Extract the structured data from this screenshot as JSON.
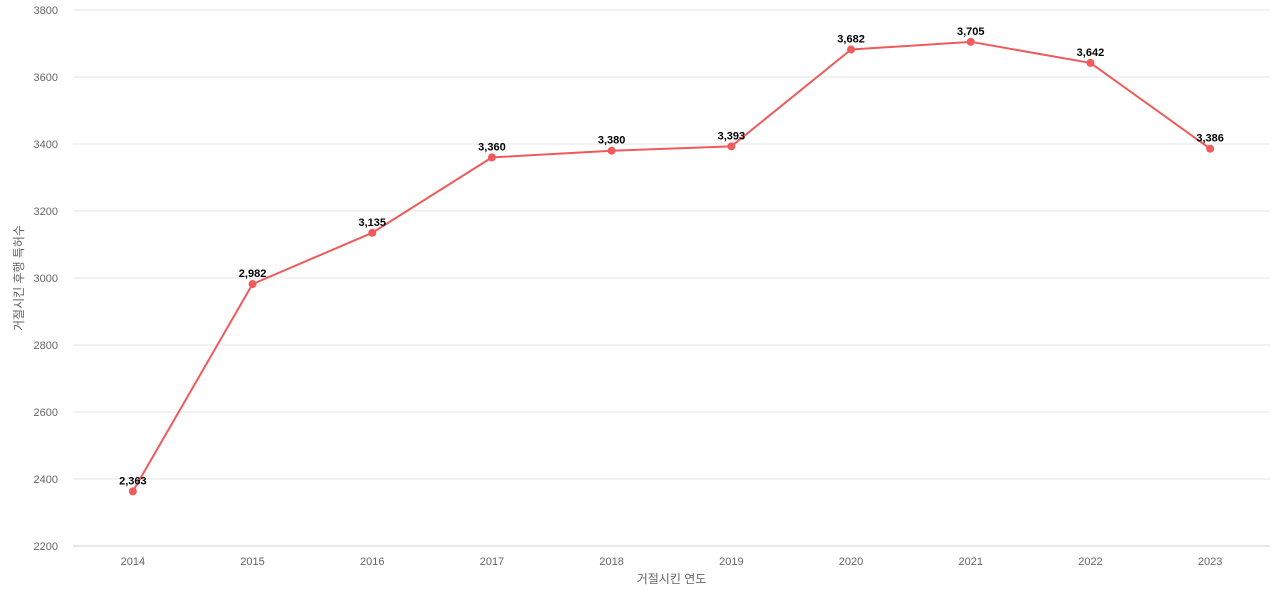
{
  "chart_data": {
    "type": "line",
    "title": "",
    "xlabel": "거절시킨 연도",
    "ylabel": "거절시킨 후행 특허수",
    "categories": [
      "2014",
      "2015",
      "2016",
      "2017",
      "2018",
      "2019",
      "2020",
      "2021",
      "2022",
      "2023"
    ],
    "series": [
      {
        "values": [
          2363,
          2982,
          3135,
          3360,
          3380,
          3393,
          3682,
          3705,
          3642,
          3386
        ],
        "data_labels": [
          "2,363",
          "2,982",
          "3,135",
          "3,360",
          "3,380",
          "3,393",
          "3,682",
          "3,705",
          "3,642",
          "3,386"
        ],
        "color": "#f05a5a"
      }
    ],
    "ylim": [
      2200,
      3800
    ],
    "y_ticks": [
      "2200",
      "2400",
      "2600",
      "2800",
      "3000",
      "3200",
      "3400",
      "3600",
      "3800"
    ],
    "grid": true,
    "legend": "none"
  }
}
